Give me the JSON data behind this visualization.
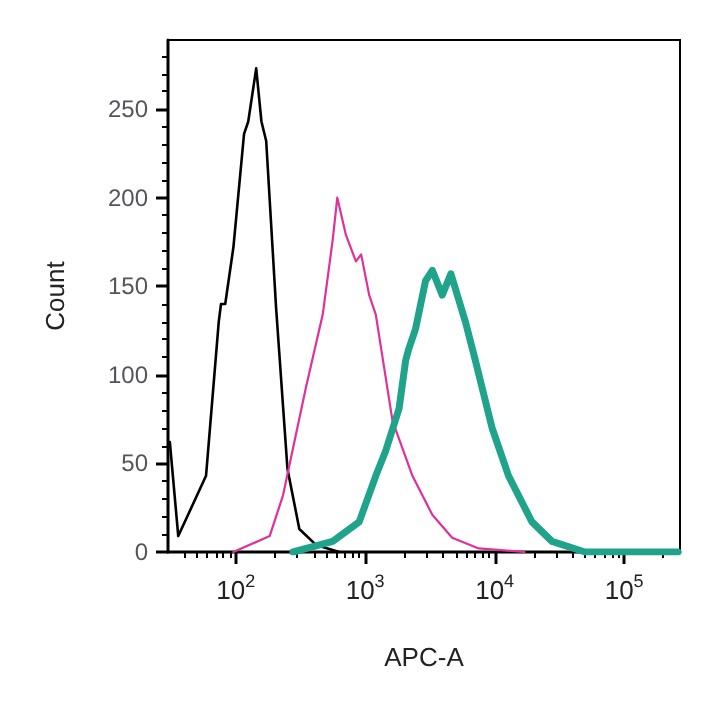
{
  "chart_data": {
    "type": "line",
    "xlabel": "APC-A",
    "ylabel": "Count",
    "log": "x",
    "xlim": [
      30,
      270000
    ],
    "ylim": [
      0,
      289
    ],
    "xticks": [
      {
        "value": 100,
        "label": "10$^{2}$"
      },
      {
        "value": 1000,
        "label": "10$^{3}$"
      },
      {
        "value": 10000,
        "label": "10$^{4}$"
      },
      {
        "value": 100000,
        "label": "10$^{5}$"
      }
    ],
    "yticks": [
      0,
      50,
      100,
      150,
      200,
      250
    ],
    "grid": false,
    "marker": "none",
    "line_style": "solid",
    "series": [
      {
        "color": "#000000",
        "x": [
          31,
          36,
          59,
          74,
          77,
          83,
          96,
          116,
          125,
          144,
          158,
          172,
          205,
          251,
          310,
          417,
          631
        ],
        "values": [
          62,
          9,
          43,
          130,
          140,
          140,
          172,
          236,
          243,
          273,
          243,
          232,
          138,
          47,
          13,
          4,
          0
        ]
      },
      {
        "color": "#e0309a",
        "x": [
          96,
          183,
          232,
          349,
          470,
          561,
          609,
          710,
          848,
          931,
          1074,
          1208,
          1626,
          2317,
          3300,
          4700,
          7530,
          17000
        ],
        "values": [
          0,
          9,
          32,
          93,
          134,
          176,
          200,
          179,
          164,
          168,
          145,
          134,
          74,
          43,
          21,
          8,
          2,
          0
        ]
      },
      {
        "color": "#1fa38a",
        "x": [
          277,
          561,
          899,
          1208,
          1439,
          1827,
          2052,
          2178,
          2449,
          2924,
          3300,
          3936,
          4590,
          5940,
          7100,
          9550,
          12800,
          19400,
          27700,
          49800,
          260000
        ],
        "values": [
          0,
          6,
          17,
          43,
          57,
          81,
          108,
          115,
          126,
          153,
          159,
          145,
          157,
          130,
          108,
          70,
          43,
          17,
          6,
          0,
          0
        ]
      }
    ]
  }
}
